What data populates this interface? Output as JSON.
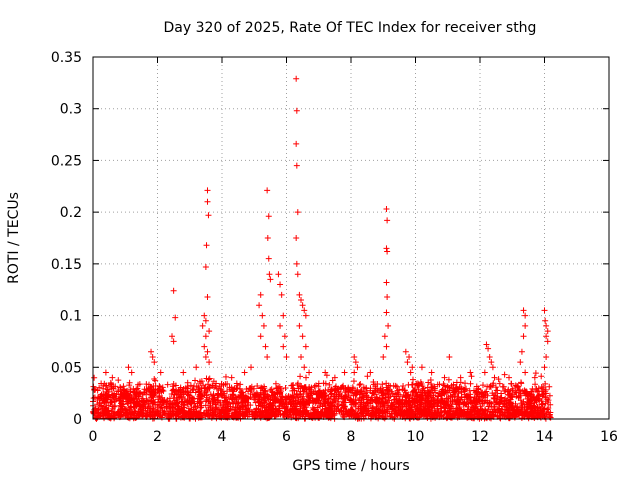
{
  "chart_data": {
    "type": "scatter",
    "title": "Day 320 of 2025, Rate Of TEC Index for receiver sthg",
    "xlabel": "GPS time / hours",
    "ylabel": "ROTI / TECUs",
    "xlim": [
      0,
      16
    ],
    "ylim": [
      0,
      0.35
    ],
    "xticks": [
      0,
      2,
      4,
      6,
      8,
      10,
      12,
      14,
      16
    ],
    "yticks": [
      0,
      0.05,
      0.1,
      0.15,
      0.2,
      0.25,
      0.3,
      0.35
    ],
    "xtick_labels": [
      "0",
      "2",
      "4",
      "6",
      "8",
      "10",
      "12",
      "14",
      "16"
    ],
    "ytick_labels": [
      "0",
      "0.05",
      "0.1",
      "0.15",
      "0.2",
      "0.25",
      "0.3",
      "0.35"
    ],
    "grid": true,
    "marker": "+",
    "color": "#ff0000",
    "data_extent_hours": [
      0,
      14.2
    ],
    "baseline_max": 0.03,
    "points": [
      [
        2.5,
        0.124
      ],
      [
        2.55,
        0.098
      ],
      [
        2.45,
        0.08
      ],
      [
        2.5,
        0.075
      ],
      [
        3.55,
        0.221
      ],
      [
        3.55,
        0.21
      ],
      [
        3.58,
        0.197
      ],
      [
        3.52,
        0.168
      ],
      [
        3.5,
        0.147
      ],
      [
        3.55,
        0.118
      ],
      [
        3.45,
        0.1
      ],
      [
        3.5,
        0.095
      ],
      [
        3.4,
        0.09
      ],
      [
        3.6,
        0.085
      ],
      [
        3.5,
        0.08
      ],
      [
        3.45,
        0.07
      ],
      [
        3.55,
        0.065
      ],
      [
        3.5,
        0.06
      ],
      [
        3.6,
        0.055
      ],
      [
        5.4,
        0.221
      ],
      [
        5.45,
        0.196
      ],
      [
        5.42,
        0.175
      ],
      [
        5.45,
        0.155
      ],
      [
        5.47,
        0.14
      ],
      [
        5.5,
        0.135
      ],
      [
        5.2,
        0.12
      ],
      [
        5.15,
        0.11
      ],
      [
        5.25,
        0.1
      ],
      [
        5.3,
        0.09
      ],
      [
        5.2,
        0.08
      ],
      [
        5.35,
        0.07
      ],
      [
        5.4,
        0.06
      ],
      [
        5.75,
        0.14
      ],
      [
        5.8,
        0.13
      ],
      [
        5.85,
        0.12
      ],
      [
        5.9,
        0.1
      ],
      [
        5.8,
        0.09
      ],
      [
        5.95,
        0.08
      ],
      [
        5.9,
        0.07
      ],
      [
        6.0,
        0.06
      ],
      [
        6.3,
        0.329
      ],
      [
        6.32,
        0.298
      ],
      [
        6.3,
        0.266
      ],
      [
        6.32,
        0.245
      ],
      [
        6.35,
        0.2
      ],
      [
        6.3,
        0.175
      ],
      [
        6.32,
        0.15
      ],
      [
        6.35,
        0.14
      ],
      [
        6.4,
        0.12
      ],
      [
        6.45,
        0.115
      ],
      [
        6.5,
        0.11
      ],
      [
        6.55,
        0.105
      ],
      [
        6.6,
        0.1
      ],
      [
        6.4,
        0.09
      ],
      [
        6.5,
        0.08
      ],
      [
        6.6,
        0.07
      ],
      [
        6.45,
        0.06
      ],
      [
        6.55,
        0.05
      ],
      [
        6.7,
        0.045
      ],
      [
        9.1,
        0.203
      ],
      [
        9.12,
        0.192
      ],
      [
        9.1,
        0.165
      ],
      [
        9.12,
        0.162
      ],
      [
        9.1,
        0.132
      ],
      [
        9.12,
        0.118
      ],
      [
        9.1,
        0.103
      ],
      [
        9.15,
        0.09
      ],
      [
        9.05,
        0.08
      ],
      [
        9.1,
        0.07
      ],
      [
        9.0,
        0.06
      ],
      [
        8.1,
        0.06
      ],
      [
        8.15,
        0.055
      ],
      [
        8.2,
        0.05
      ],
      [
        8.1,
        0.045
      ],
      [
        9.7,
        0.065
      ],
      [
        9.8,
        0.06
      ],
      [
        9.75,
        0.055
      ],
      [
        9.9,
        0.05
      ],
      [
        9.85,
        0.045
      ],
      [
        11.05,
        0.06
      ],
      [
        12.2,
        0.072
      ],
      [
        12.25,
        0.068
      ],
      [
        12.3,
        0.06
      ],
      [
        12.35,
        0.055
      ],
      [
        12.4,
        0.05
      ],
      [
        12.15,
        0.045
      ],
      [
        12.45,
        0.04
      ],
      [
        13.35,
        0.105
      ],
      [
        13.4,
        0.1
      ],
      [
        13.4,
        0.09
      ],
      [
        13.35,
        0.08
      ],
      [
        13.3,
        0.065
      ],
      [
        13.25,
        0.055
      ],
      [
        13.4,
        0.045
      ],
      [
        14.0,
        0.105
      ],
      [
        14.02,
        0.095
      ],
      [
        14.05,
        0.09
      ],
      [
        14.1,
        0.085
      ],
      [
        14.05,
        0.08
      ],
      [
        14.1,
        0.075
      ],
      [
        14.05,
        0.06
      ],
      [
        14.0,
        0.05
      ],
      [
        1.8,
        0.065
      ],
      [
        1.85,
        0.06
      ],
      [
        1.9,
        0.055
      ],
      [
        0.4,
        0.045
      ],
      [
        0.6,
        0.04
      ],
      [
        1.1,
        0.05
      ],
      [
        1.2,
        0.045
      ],
      [
        2.1,
        0.045
      ],
      [
        2.8,
        0.045
      ],
      [
        3.2,
        0.05
      ],
      [
        4.3,
        0.04
      ],
      [
        4.7,
        0.045
      ],
      [
        4.9,
        0.05
      ],
      [
        7.2,
        0.045
      ],
      [
        7.5,
        0.04
      ],
      [
        7.8,
        0.045
      ],
      [
        8.6,
        0.045
      ],
      [
        10.2,
        0.05
      ],
      [
        10.5,
        0.045
      ],
      [
        10.9,
        0.04
      ],
      [
        11.4,
        0.04
      ],
      [
        11.7,
        0.045
      ],
      [
        12.9,
        0.04
      ],
      [
        13.7,
        0.04
      ]
    ]
  }
}
